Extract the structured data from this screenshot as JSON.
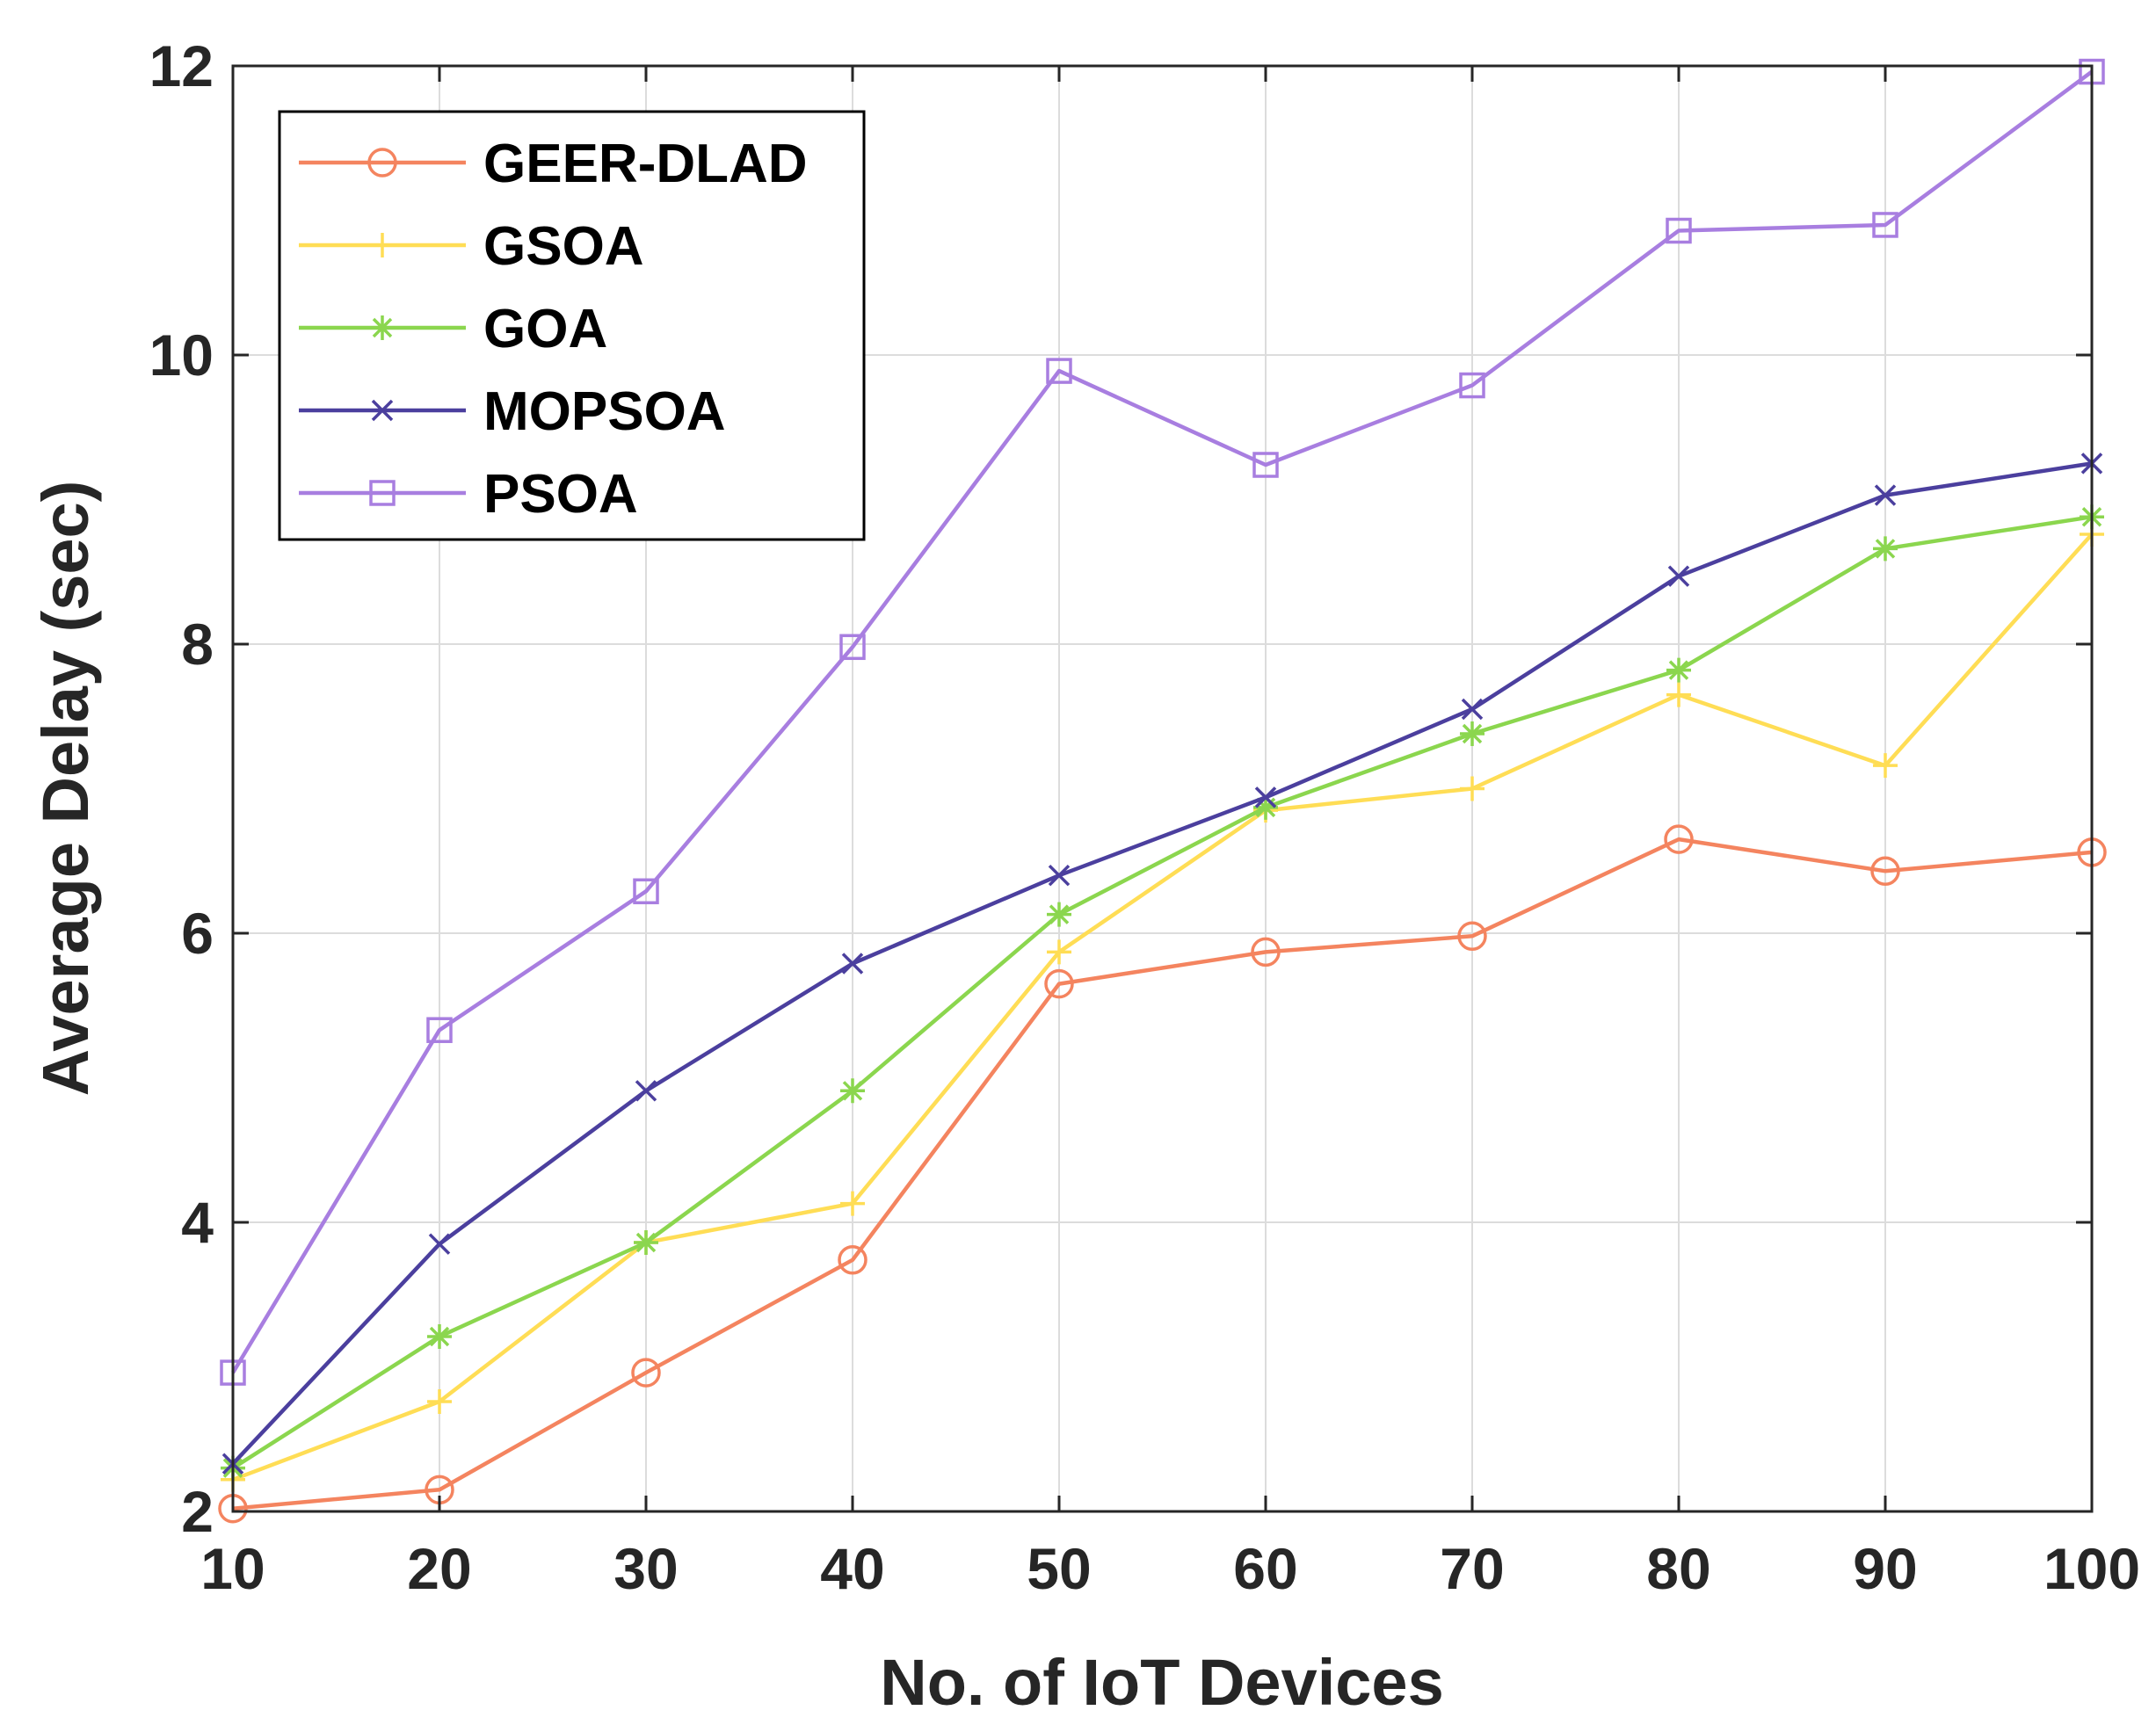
{
  "chart_data": {
    "type": "line",
    "title": "",
    "xlabel": "No. of IoT Devices",
    "ylabel": "Average Delay (sec)",
    "x": [
      10,
      20,
      30,
      40,
      50,
      60,
      70,
      80,
      90,
      100
    ],
    "xlim": [
      10,
      100
    ],
    "ylim": [
      2,
      12
    ],
    "xticks": [
      10,
      20,
      30,
      40,
      50,
      60,
      70,
      80,
      90,
      100
    ],
    "yticks": [
      2,
      4,
      6,
      8,
      10,
      12
    ],
    "grid": true,
    "legend_position": "top-left",
    "series": [
      {
        "name": "GEER-DLAD",
        "color": "#F4845F",
        "marker": "circle",
        "values": [
          2.02,
          2.15,
          2.96,
          3.74,
          5.65,
          5.87,
          5.98,
          6.65,
          6.43,
          6.56
        ]
      },
      {
        "name": "GSOA",
        "color": "#FFDD55",
        "marker": "plus",
        "values": [
          2.22,
          2.76,
          3.86,
          4.13,
          5.87,
          6.85,
          7.0,
          7.65,
          7.16,
          8.76
        ]
      },
      {
        "name": "GOA",
        "color": "#8BD64E",
        "marker": "asterisk",
        "values": [
          2.3,
          3.21,
          3.86,
          4.91,
          6.13,
          6.87,
          7.38,
          7.82,
          8.66,
          8.88
        ]
      },
      {
        "name": "MOPSOA",
        "color": "#4B3F9E",
        "marker": "cross",
        "values": [
          2.33,
          3.85,
          4.91,
          5.79,
          6.4,
          6.94,
          7.55,
          8.47,
          9.03,
          9.25
        ]
      },
      {
        "name": "PSOA",
        "color": "#A87EE0",
        "marker": "square",
        "values": [
          2.96,
          5.33,
          6.29,
          7.98,
          9.89,
          9.24,
          9.79,
          10.86,
          10.9,
          11.96
        ]
      }
    ]
  }
}
